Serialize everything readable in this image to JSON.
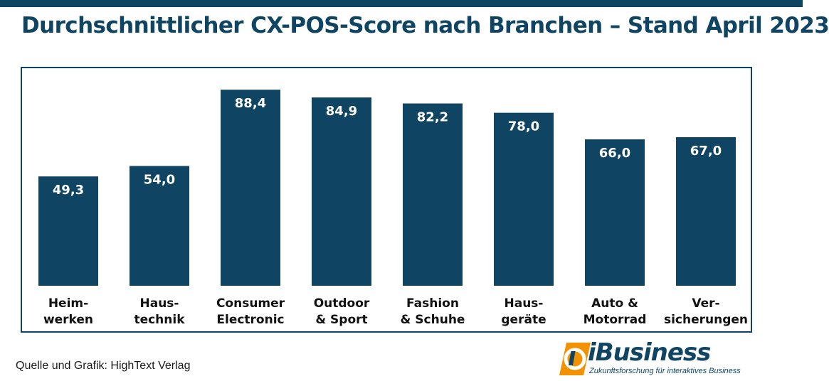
{
  "title": "Durchschnittlicher CX-POS-Score nach Branchen – Stand April 2023",
  "source": "Quelle und Grafik: HighText Verlag",
  "logo": {
    "word": "iBusiness",
    "tagline": "Zukunftsforschung für interaktives Business"
  },
  "colors": {
    "bar": "#0f4562",
    "accent": "#f39200",
    "label": "#111111",
    "value": "#ffffff"
  },
  "chart_data": {
    "type": "bar",
    "title": "Durchschnittlicher CX-POS-Score nach Branchen – Stand April 2023",
    "xlabel": "",
    "ylabel": "",
    "ylim": [
      0,
      100
    ],
    "grid": false,
    "legend": "none",
    "categories": [
      [
        "Heim-",
        "werken"
      ],
      [
        "Haus-",
        "technik"
      ],
      [
        "Consumer",
        "Electronic"
      ],
      [
        "Outdoor",
        "& Sport"
      ],
      [
        "Fashion",
        "& Schuhe"
      ],
      [
        "Haus-",
        "geräte"
      ],
      [
        "Auto &",
        "Motorrad"
      ],
      [
        "Ver-",
        "sicherungen"
      ]
    ],
    "values": [
      49.3,
      54.0,
      88.4,
      84.9,
      82.2,
      78.0,
      66.0,
      67.0
    ],
    "value_labels": [
      "49,3",
      "54,0",
      "88,4",
      "84,9",
      "82,2",
      "78,0",
      "66,0",
      "67,0"
    ]
  }
}
